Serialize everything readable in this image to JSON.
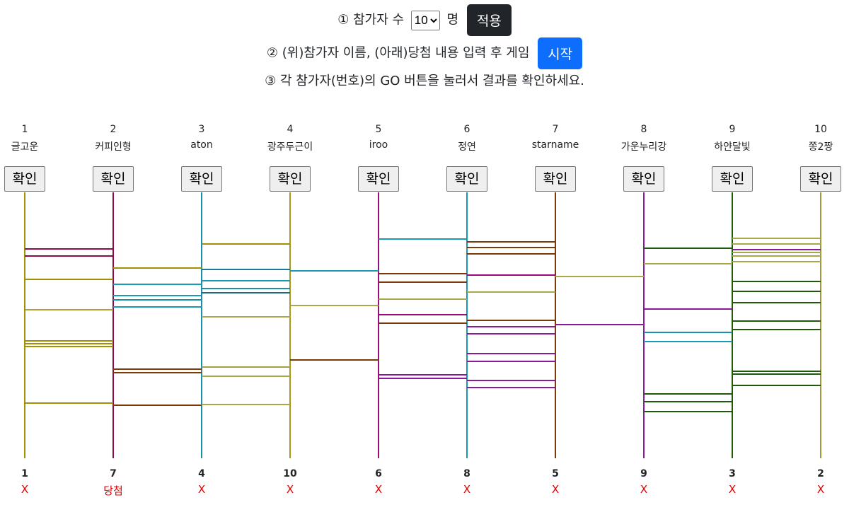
{
  "controls": {
    "step1_prefix": "① 참가자 수",
    "count": "10",
    "step1_suffix": "명",
    "apply_button": "적용",
    "step2": "② (위)참가자 이름, (아래)당첨 내용 입력 후 게임",
    "start_button": "시작",
    "step3": "③ 각 참가자(번호)의 GO 버튼을 눌러서 결과를 확인하세요."
  },
  "participants": [
    {
      "number": 1,
      "name": "글고운"
    },
    {
      "number": 2,
      "name": "커피인형"
    },
    {
      "number": 3,
      "name": "aton"
    },
    {
      "number": 4,
      "name": "광주두근이"
    },
    {
      "number": 5,
      "name": "iroo"
    },
    {
      "number": 6,
      "name": "정연"
    },
    {
      "number": 7,
      "name": "starname"
    },
    {
      "number": 8,
      "name": "가운누리강"
    },
    {
      "number": 9,
      "name": "하얀달빛"
    },
    {
      "number": 10,
      "name": "쫑2짱"
    }
  ],
  "check_button": "확인",
  "results": [
    {
      "number": 1,
      "prize": "X"
    },
    {
      "number": 7,
      "prize": "당첨"
    },
    {
      "number": 4,
      "prize": "X"
    },
    {
      "number": 10,
      "prize": "X"
    },
    {
      "number": 6,
      "prize": "X"
    },
    {
      "number": 8,
      "prize": "X"
    },
    {
      "number": 5,
      "prize": "X"
    },
    {
      "number": 9,
      "prize": "X"
    },
    {
      "number": 3,
      "prize": "X"
    },
    {
      "number": 2,
      "prize": "X"
    }
  ]
}
